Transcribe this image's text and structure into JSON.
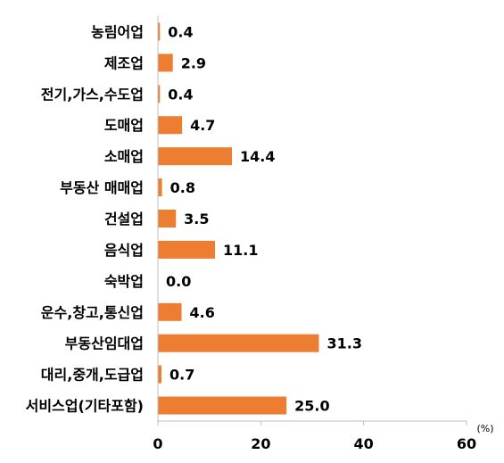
{
  "chart_data": {
    "type": "bar",
    "orientation": "horizontal",
    "categories": [
      "농림어업",
      "제조업",
      "전기,가스,수도업",
      "도매업",
      "소매업",
      "부동산 매매업",
      "건설업",
      "음식업",
      "숙박업",
      "운수,창고,통신업",
      "부동산임대업",
      "대리,중개,도급업",
      "서비스업(기타포함)"
    ],
    "values": [
      0.4,
      2.9,
      0.4,
      4.7,
      14.4,
      0.8,
      3.5,
      11.1,
      0.0,
      4.6,
      31.3,
      0.7,
      25.0
    ],
    "value_labels": [
      "0.4",
      "2.9",
      "0.4",
      "4.7",
      "14.4",
      "0.8",
      "3.5",
      "11.1",
      "0.0",
      "4.6",
      "31.3",
      "0.7",
      "25.0"
    ],
    "title": "",
    "xlabel": "",
    "ylabel": "",
    "unit": "(%)",
    "xlim": [
      0,
      60
    ],
    "xticks": [
      0,
      20,
      40,
      60
    ],
    "grid": false,
    "legend": "none",
    "bar_color": "#ED7D31"
  }
}
